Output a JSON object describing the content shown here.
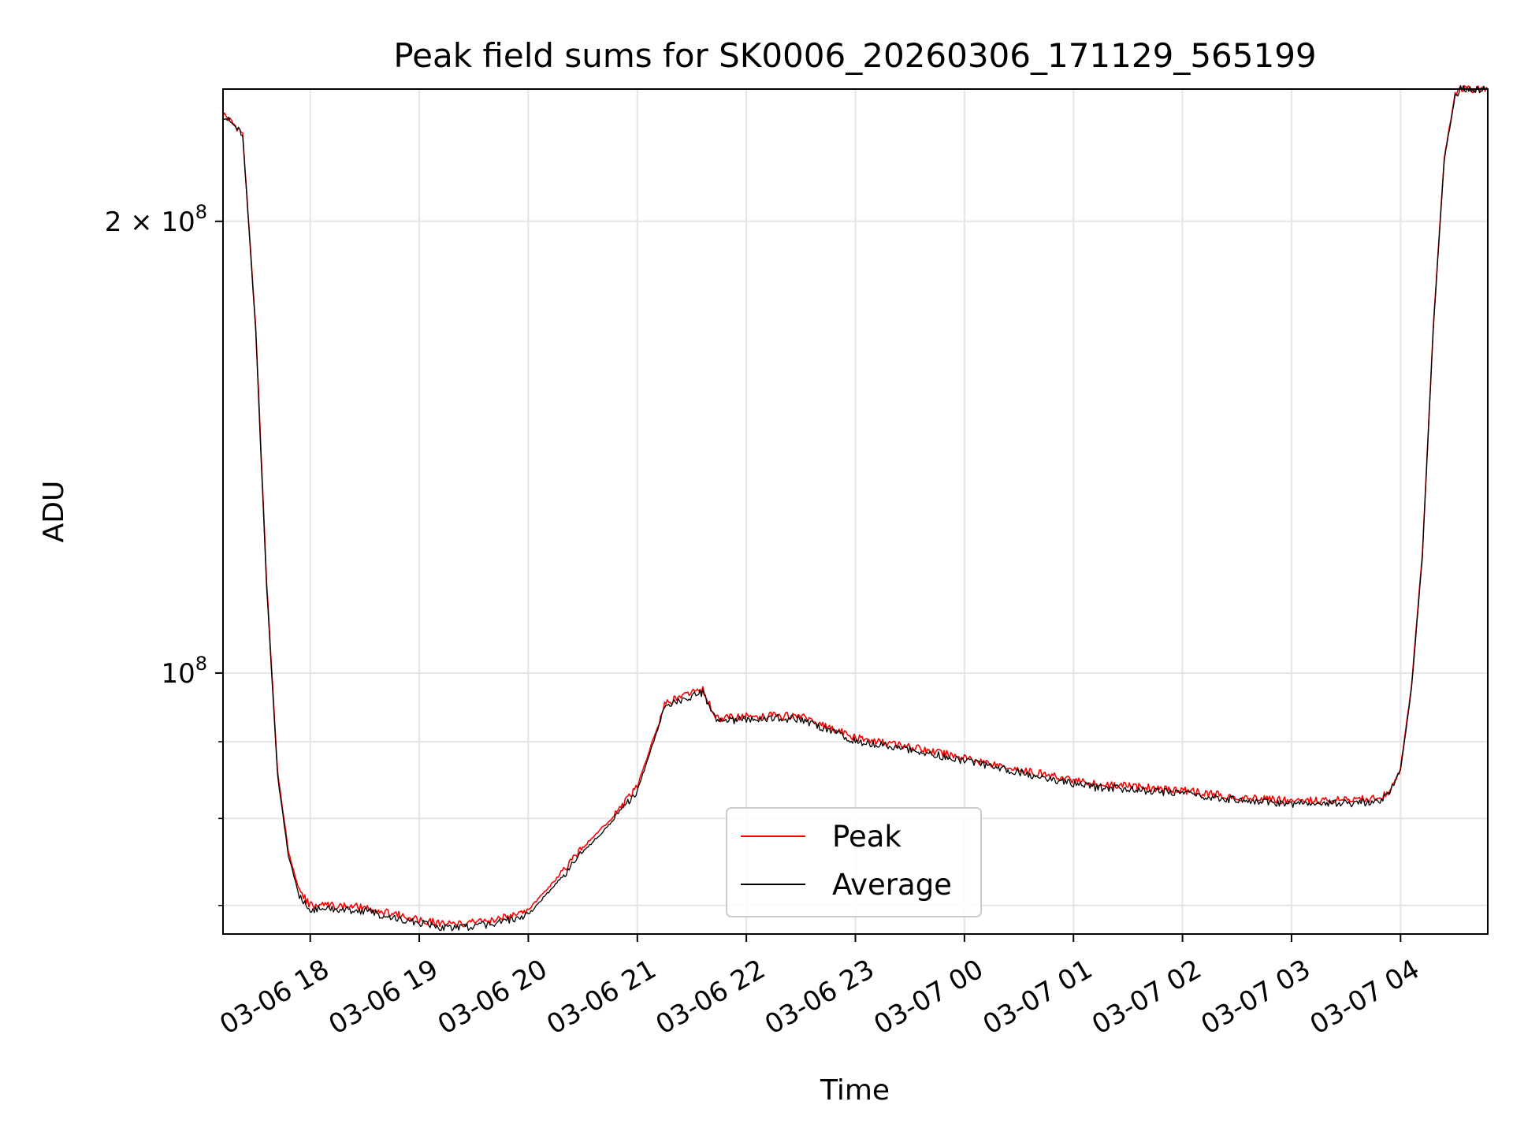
{
  "chart_data": {
    "type": "line",
    "title": "Peak field sums for SK0006_20260306_171129_565199",
    "xlabel": "Time",
    "ylabel": "ADU",
    "yscale": "log",
    "ylim": [
      67000000,
      245000000
    ],
    "xlim_hours": [
      17.2,
      28.8
    ],
    "grid": true,
    "x_ticks": [
      {
        "h": 18,
        "label": "03-06 18"
      },
      {
        "h": 19,
        "label": "03-06 19"
      },
      {
        "h": 20,
        "label": "03-06 20"
      },
      {
        "h": 21,
        "label": "03-06 21"
      },
      {
        "h": 22,
        "label": "03-06 22"
      },
      {
        "h": 23,
        "label": "03-06 23"
      },
      {
        "h": 24,
        "label": "03-07 00"
      },
      {
        "h": 25,
        "label": "03-07 01"
      },
      {
        "h": 26,
        "label": "03-07 02"
      },
      {
        "h": 27,
        "label": "03-07 03"
      },
      {
        "h": 28,
        "label": "03-07 04"
      }
    ],
    "y_major_ticks": [
      {
        "value": 100000000,
        "base": "10",
        "exp": "8"
      },
      {
        "value": 200000000,
        "base": "2 × 10",
        "exp": "8"
      }
    ],
    "y_minor_ticks": [
      70000000,
      80000000,
      90000000
    ],
    "legend": {
      "position": "lower-center",
      "entries": [
        "Peak",
        "Average"
      ]
    },
    "series": [
      {
        "name": "Peak",
        "color": "#ff0000",
        "x_hours": [
          17.2,
          17.38,
          17.5,
          17.6,
          17.7,
          17.8,
          17.9,
          18.0,
          18.2,
          18.5,
          18.8,
          19.1,
          19.3,
          19.5,
          19.7,
          20.0,
          20.3,
          20.5,
          20.8,
          21.0,
          21.2,
          21.25,
          21.5,
          21.6,
          21.7,
          21.75,
          22.0,
          22.3,
          22.5,
          22.8,
          23.0,
          23.5,
          24.0,
          24.5,
          25.0,
          25.2,
          25.5,
          26.0,
          26.5,
          27.0,
          27.3,
          27.6,
          27.8,
          27.9,
          28.0,
          28.05,
          28.1,
          28.2,
          28.3,
          28.4,
          28.5,
          28.55,
          28.6,
          28.8
        ],
        "values": [
          236000000,
          229000000,
          170000000,
          115000000,
          86000000,
          76000000,
          71500000,
          70000000,
          70000000,
          69800000,
          69000000,
          68300000,
          68000000,
          68200000,
          68500000,
          69500000,
          73500000,
          76500000,
          80500000,
          84000000,
          92800000,
          95500000,
          97000000,
          97500000,
          94000000,
          93200000,
          93600000,
          93700000,
          93500000,
          91800000,
          90500000,
          89300000,
          87800000,
          86300000,
          84800000,
          84300000,
          84100000,
          83500000,
          82700000,
          82200000,
          82300000,
          82300000,
          82600000,
          83500000,
          86500000,
          92000000,
          98000000,
          120000000,
          170000000,
          220000000,
          243000000,
          245000000,
          245000000,
          245000000
        ]
      },
      {
        "name": "Average",
        "color": "#000000",
        "x_hours": [
          17.2,
          17.38,
          17.5,
          17.6,
          17.7,
          17.8,
          17.9,
          18.0,
          18.2,
          18.5,
          18.8,
          19.1,
          19.3,
          19.5,
          19.7,
          20.0,
          20.3,
          20.5,
          20.8,
          21.0,
          21.2,
          21.25,
          21.5,
          21.6,
          21.7,
          21.75,
          22.0,
          22.3,
          22.5,
          22.8,
          23.0,
          23.5,
          24.0,
          24.5,
          25.0,
          25.2,
          25.5,
          26.0,
          26.5,
          27.0,
          27.3,
          27.6,
          27.8,
          27.9,
          28.0,
          28.05,
          28.1,
          28.2,
          28.3,
          28.4,
          28.5,
          28.55,
          28.6,
          28.8
        ],
        "values": [
          235500000,
          228500000,
          169000000,
          114000000,
          85500000,
          75500000,
          71000000,
          69600000,
          69600000,
          69400000,
          68600000,
          67900000,
          67600000,
          67800000,
          68100000,
          69000000,
          73000000,
          76000000,
          80000000,
          83500000,
          92300000,
          95000000,
          96500000,
          97000000,
          93600000,
          92800000,
          93200000,
          93300000,
          93100000,
          91400000,
          90100000,
          88900000,
          87400000,
          85900000,
          84400000,
          83900000,
          83700000,
          83100000,
          82300000,
          81800000,
          81900000,
          81900000,
          82200000,
          83100000,
          86100000,
          91600000,
          97500000,
          119500000,
          169500000,
          219500000,
          242500000,
          245000000,
          245000000,
          245000000
        ]
      }
    ]
  }
}
